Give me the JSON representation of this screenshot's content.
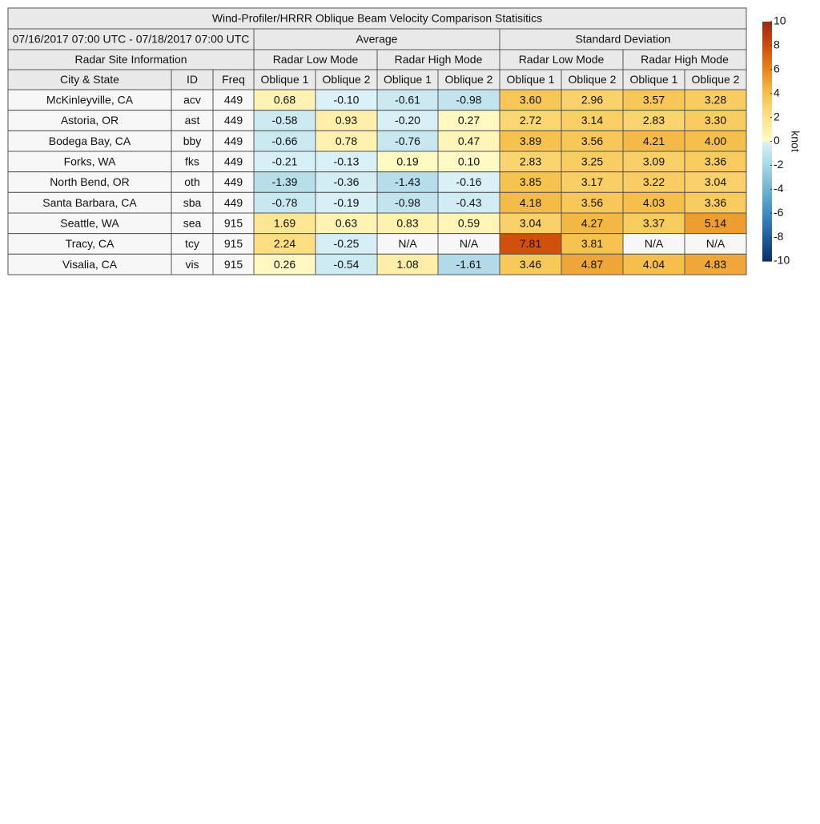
{
  "title": "Wind-Profiler/HRRR Oblique Beam Velocity Comparison Statisitics",
  "period": "07/16/2017 07:00 UTC - 07/18/2017 07:00 UTC",
  "average": "Average",
  "std": "Standard Deviation",
  "site_info": "Radar Site Information",
  "modes": [
    "Radar Low Mode",
    "Radar High Mode",
    "Radar Low Mode",
    "Radar High Mode"
  ],
  "columns": [
    "City & State",
    "ID",
    "Freq",
    "Oblique 1",
    "Oblique 2",
    "Oblique 1",
    "Oblique 2",
    "Oblique 1",
    "Oblique 2",
    "Oblique 1",
    "Oblique 2"
  ],
  "rows": [
    [
      "McKinleyville, CA",
      "acv",
      "449",
      "0.68",
      "-0.10",
      "-0.61",
      "-0.98",
      "3.60",
      "2.96",
      "3.57",
      "3.28"
    ],
    [
      "Astoria, OR",
      "ast",
      "449",
      "-0.58",
      "0.93",
      "-0.20",
      "0.27",
      "2.72",
      "3.14",
      "2.83",
      "3.30"
    ],
    [
      "Bodega Bay, CA",
      "bby",
      "449",
      "-0.66",
      "0.78",
      "-0.76",
      "0.47",
      "3.89",
      "3.56",
      "4.21",
      "4.00"
    ],
    [
      "Forks, WA",
      "fks",
      "449",
      "-0.21",
      "-0.13",
      "0.19",
      "0.10",
      "2.83",
      "3.25",
      "3.09",
      "3.36"
    ],
    [
      "North Bend, OR",
      "oth",
      "449",
      "-1.39",
      "-0.36",
      "-1.43",
      "-0.16",
      "3.85",
      "3.17",
      "3.22",
      "3.04"
    ],
    [
      "Santa Barbara, CA",
      "sba",
      "449",
      "-0.78",
      "-0.19",
      "-0.98",
      "-0.43",
      "4.18",
      "3.56",
      "4.03",
      "3.36"
    ],
    [
      "Seattle, WA",
      "sea",
      "915",
      "1.69",
      "0.63",
      "0.83",
      "0.59",
      "3.04",
      "4.27",
      "3.37",
      "5.14"
    ],
    [
      "Tracy, CA",
      "tcy",
      "915",
      "2.24",
      "-0.25",
      "N/A",
      "N/A",
      "7.81",
      "3.81",
      "N/A",
      "N/A"
    ],
    [
      "Visalia, CA",
      "vis",
      "915",
      "0.26",
      "-0.54",
      "1.08",
      "-1.61",
      "3.46",
      "4.87",
      "4.04",
      "4.83"
    ]
  ],
  "colorbar": {
    "ticks": [
      10,
      8,
      6,
      4,
      2,
      0,
      -2,
      -4,
      -6,
      -8,
      -10
    ],
    "label": "knot"
  }
}
